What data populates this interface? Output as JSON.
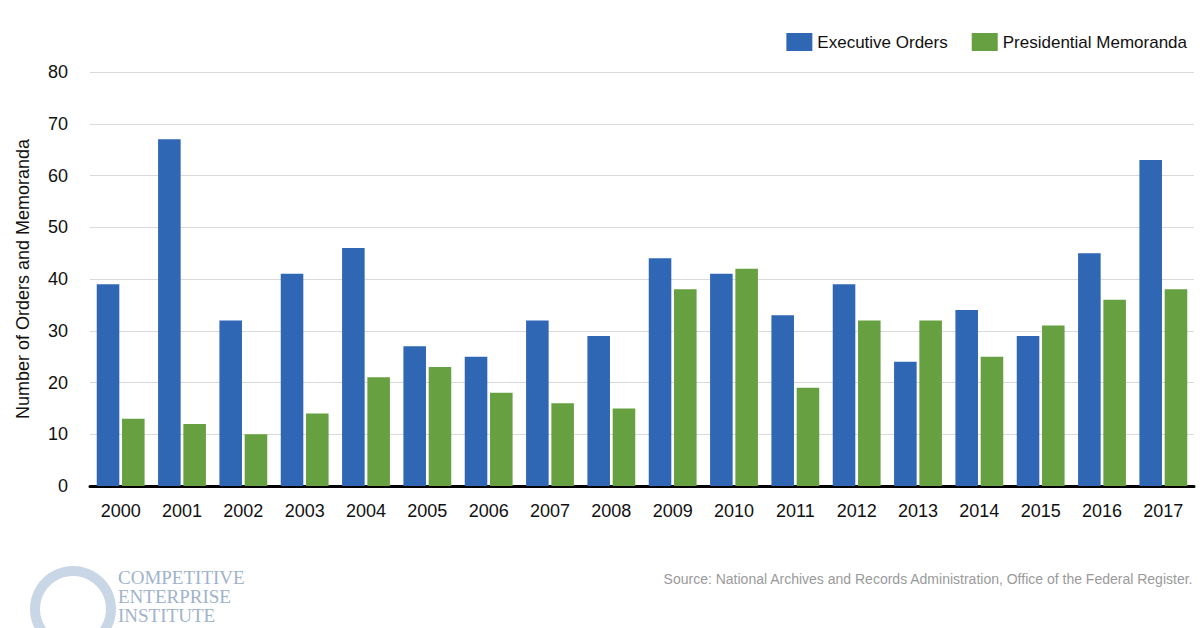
{
  "chart_data": {
    "type": "bar",
    "y_label": "Number of Orders and Memoranda",
    "categories": [
      "2000",
      "2001",
      "2002",
      "2003",
      "2004",
      "2005",
      "2006",
      "2007",
      "2008",
      "2009",
      "2010",
      "2011",
      "2012",
      "2013",
      "2014",
      "2015",
      "2016",
      "2017"
    ],
    "series": [
      {
        "name": "Executive Orders",
        "color": "#2f67b5",
        "values": [
          39,
          67,
          32,
          41,
          46,
          27,
          25,
          32,
          29,
          44,
          41,
          33,
          39,
          24,
          34,
          29,
          45,
          63
        ]
      },
      {
        "name": "Presidential Memoranda",
        "color": "#66a040",
        "values": [
          13,
          12,
          10,
          14,
          21,
          23,
          18,
          16,
          15,
          38,
          42,
          19,
          32,
          32,
          25,
          31,
          36,
          38
        ]
      }
    ],
    "ylim": [
      0,
      80
    ],
    "yticks": [
      0,
      10,
      20,
      30,
      40,
      50,
      60,
      70,
      80
    ],
    "grid": true,
    "legend": "top-right",
    "source": "Source: National Archives and Records Administration, Office of the Federal Register.",
    "logo_text": [
      "COMPETITIVE",
      "ENTERPRISE",
      "INSTITUTE"
    ]
  }
}
